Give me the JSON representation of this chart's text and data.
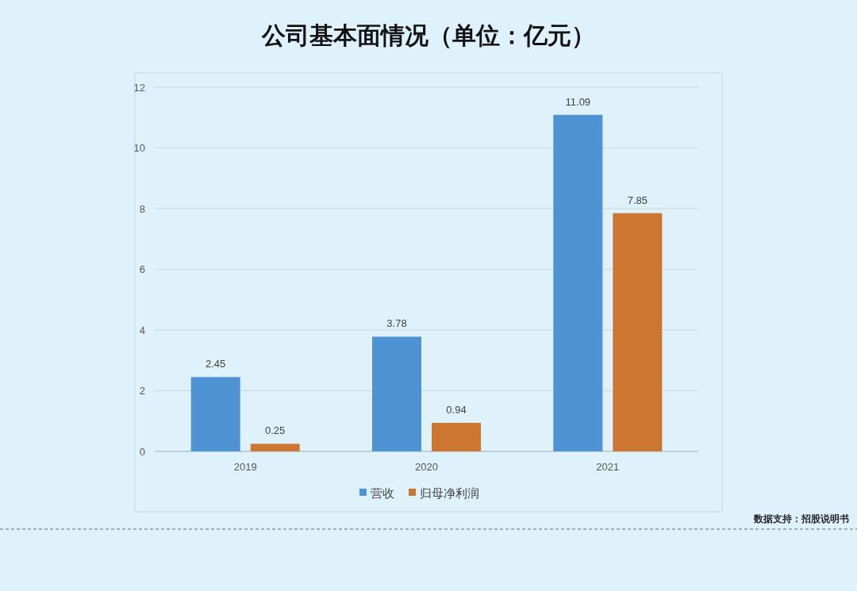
{
  "chart_data": {
    "type": "bar",
    "title": "公司基本面情况（单位：亿元）",
    "categories": [
      "2019",
      "2020",
      "2021"
    ],
    "series": [
      {
        "name": "营收",
        "color": "#4e94d4",
        "values": [
          2.45,
          3.78,
          11.09
        ]
      },
      {
        "name": "归母净利润",
        "color": "#cd7632",
        "values": [
          0.25,
          0.94,
          7.85
        ]
      }
    ],
    "ylim": [
      0,
      12
    ],
    "yticks": [
      0,
      2,
      4,
      6,
      8,
      10,
      12
    ],
    "grid": "y",
    "legend": "bottom",
    "data_labels": true,
    "annotations": [
      "数据支持：招股说明书"
    ]
  }
}
